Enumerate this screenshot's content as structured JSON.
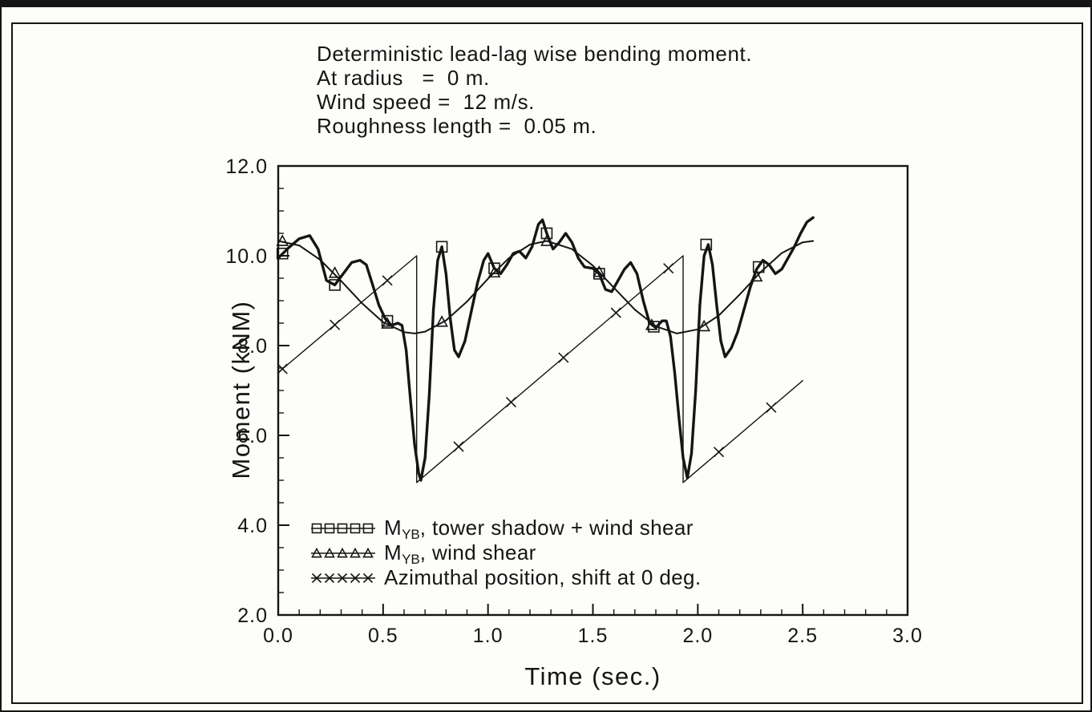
{
  "colors": {
    "ink": "#151515",
    "paper": "#fdfdfa"
  },
  "chart_data": {
    "type": "line",
    "title_lines": [
      "Deterministic lead-lag wise bending moment.",
      "At radius   =  0 m.",
      "Wind speed =  12 m/s.",
      "Roughness length =  0.05 m."
    ],
    "xlabel": "Time  (sec.)",
    "ylabel": "Moment  (kNM)",
    "xlim": [
      0.0,
      3.0
    ],
    "ylim": [
      2.0,
      12.0
    ],
    "xticks": [
      0.0,
      0.5,
      1.0,
      1.5,
      2.0,
      2.5,
      3.0
    ],
    "xtick_labels": [
      "0.0",
      "0.5",
      "1.0",
      "1.5",
      "2.0",
      "2.5",
      "3.0"
    ],
    "yticks": [
      2.0,
      4.0,
      6.0,
      8.0,
      10.0,
      12.0
    ],
    "ytick_labels": [
      "2.0",
      "4.0",
      "6.0",
      "8.0",
      "10.0",
      "12.0"
    ],
    "x_minor_step": 0.1,
    "y_minor_step": 0.5,
    "grid": false,
    "legend_position": "lower-left-inside",
    "series": [
      {
        "name": "MYB tower shadow + wind shear",
        "marker": "square",
        "line_width": 3.4,
        "legend": {
          "main": "M",
          "sub": "YB",
          "rest": ", tower shadow + wind shear"
        },
        "points": [
          [
            0.0,
            9.95
          ],
          [
            0.05,
            10.18
          ],
          [
            0.1,
            10.38
          ],
          [
            0.15,
            10.45
          ],
          [
            0.19,
            10.15
          ],
          [
            0.23,
            9.45
          ],
          [
            0.27,
            9.35
          ],
          [
            0.31,
            9.6
          ],
          [
            0.35,
            9.85
          ],
          [
            0.39,
            9.9
          ],
          [
            0.42,
            9.8
          ],
          [
            0.45,
            9.35
          ],
          [
            0.48,
            8.9
          ],
          [
            0.51,
            8.6
          ],
          [
            0.54,
            8.45
          ],
          [
            0.57,
            8.5
          ],
          [
            0.59,
            8.45
          ],
          [
            0.61,
            7.9
          ],
          [
            0.63,
            6.8
          ],
          [
            0.65,
            5.8
          ],
          [
            0.67,
            5.15
          ],
          [
            0.68,
            5.0
          ],
          [
            0.7,
            5.5
          ],
          [
            0.72,
            6.9
          ],
          [
            0.74,
            8.8
          ],
          [
            0.76,
            9.9
          ],
          [
            0.78,
            10.2
          ],
          [
            0.8,
            9.6
          ],
          [
            0.82,
            8.6
          ],
          [
            0.84,
            7.9
          ],
          [
            0.86,
            7.75
          ],
          [
            0.89,
            8.1
          ],
          [
            0.92,
            8.75
          ],
          [
            0.95,
            9.4
          ],
          [
            0.98,
            9.9
          ],
          [
            1.0,
            10.05
          ],
          [
            1.03,
            9.72
          ],
          [
            1.06,
            9.6
          ],
          [
            1.09,
            9.8
          ],
          [
            1.12,
            10.05
          ],
          [
            1.15,
            10.1
          ],
          [
            1.18,
            9.95
          ],
          [
            1.21,
            10.2
          ],
          [
            1.24,
            10.7
          ],
          [
            1.26,
            10.8
          ],
          [
            1.28,
            10.5
          ],
          [
            1.31,
            10.15
          ],
          [
            1.34,
            10.3
          ],
          [
            1.37,
            10.5
          ],
          [
            1.4,
            10.3
          ],
          [
            1.43,
            9.95
          ],
          [
            1.46,
            9.75
          ],
          [
            1.5,
            9.72
          ],
          [
            1.53,
            9.6
          ],
          [
            1.56,
            9.25
          ],
          [
            1.59,
            9.2
          ],
          [
            1.62,
            9.45
          ],
          [
            1.65,
            9.7
          ],
          [
            1.68,
            9.85
          ],
          [
            1.71,
            9.6
          ],
          [
            1.74,
            9.0
          ],
          [
            1.77,
            8.5
          ],
          [
            1.8,
            8.4
          ],
          [
            1.83,
            8.55
          ],
          [
            1.85,
            8.55
          ],
          [
            1.87,
            8.2
          ],
          [
            1.89,
            7.4
          ],
          [
            1.91,
            6.4
          ],
          [
            1.93,
            5.5
          ],
          [
            1.95,
            5.05
          ],
          [
            1.97,
            5.6
          ],
          [
            1.99,
            7.0
          ],
          [
            2.01,
            8.9
          ],
          [
            2.03,
            10.0
          ],
          [
            2.05,
            10.25
          ],
          [
            2.07,
            9.8
          ],
          [
            2.09,
            8.9
          ],
          [
            2.11,
            8.1
          ],
          [
            2.13,
            7.75
          ],
          [
            2.16,
            7.95
          ],
          [
            2.19,
            8.3
          ],
          [
            2.22,
            8.8
          ],
          [
            2.25,
            9.3
          ],
          [
            2.28,
            9.7
          ],
          [
            2.31,
            9.9
          ],
          [
            2.34,
            9.8
          ],
          [
            2.37,
            9.6
          ],
          [
            2.4,
            9.7
          ],
          [
            2.43,
            9.95
          ],
          [
            2.46,
            10.2
          ],
          [
            2.49,
            10.5
          ],
          [
            2.52,
            10.75
          ],
          [
            2.55,
            10.85
          ]
        ],
        "marker_points": [
          [
            0.02,
            10.05
          ],
          [
            0.27,
            9.35
          ],
          [
            0.52,
            8.55
          ],
          [
            0.78,
            10.2
          ],
          [
            1.03,
            9.72
          ],
          [
            1.28,
            10.5
          ],
          [
            1.53,
            9.6
          ],
          [
            1.79,
            8.42
          ],
          [
            2.04,
            10.25
          ],
          [
            2.29,
            9.75
          ]
        ]
      },
      {
        "name": "MYB wind shear",
        "marker": "triangle",
        "line_width": 2.0,
        "legend": {
          "main": "M",
          "sub": "YB",
          "rest": ", wind shear"
        },
        "points": [
          [
            0.0,
            10.33
          ],
          [
            0.1,
            10.23
          ],
          [
            0.2,
            9.91
          ],
          [
            0.3,
            9.44
          ],
          [
            0.4,
            8.94
          ],
          [
            0.5,
            8.52
          ],
          [
            0.6,
            8.3
          ],
          [
            0.65,
            8.27
          ],
          [
            0.7,
            8.31
          ],
          [
            0.8,
            8.56
          ],
          [
            0.9,
            8.98
          ],
          [
            1.0,
            9.49
          ],
          [
            1.1,
            9.95
          ],
          [
            1.2,
            10.25
          ],
          [
            1.28,
            10.33
          ],
          [
            1.4,
            10.15
          ],
          [
            1.5,
            9.78
          ],
          [
            1.6,
            9.29
          ],
          [
            1.7,
            8.8
          ],
          [
            1.8,
            8.43
          ],
          [
            1.9,
            8.27
          ],
          [
            2.0,
            8.36
          ],
          [
            2.1,
            8.67
          ],
          [
            2.2,
            9.14
          ],
          [
            2.3,
            9.64
          ],
          [
            2.4,
            10.06
          ],
          [
            2.5,
            10.3
          ],
          [
            2.55,
            10.33
          ]
        ],
        "marker_points": [
          [
            0.02,
            10.33
          ],
          [
            0.27,
            9.62
          ],
          [
            0.52,
            8.49
          ],
          [
            0.78,
            8.53
          ],
          [
            1.03,
            9.63
          ],
          [
            1.28,
            10.33
          ],
          [
            1.53,
            9.64
          ],
          [
            1.78,
            8.46
          ],
          [
            2.03,
            8.43
          ],
          [
            2.28,
            9.54
          ]
        ]
      },
      {
        "name": "Azimuthal position, shift at 0 deg.",
        "marker": "x",
        "line_width": 1.4,
        "legend": {
          "main": "Azimuthal position, shift at 0 deg.",
          "sub": "",
          "rest": ""
        },
        "points": [
          [
            0.0,
            7.4
          ],
          [
            0.66,
            10.0
          ],
          [
            0.66,
            4.95
          ],
          [
            1.93,
            10.0
          ],
          [
            1.93,
            4.95
          ],
          [
            2.5,
            7.22
          ]
        ],
        "marker_points": [
          [
            0.02,
            7.48
          ],
          [
            0.27,
            8.46
          ],
          [
            0.52,
            9.45
          ],
          [
            0.86,
            5.75
          ],
          [
            1.11,
            6.74
          ],
          [
            1.36,
            7.73
          ],
          [
            1.61,
            8.73
          ],
          [
            1.86,
            9.72
          ],
          [
            2.1,
            5.63
          ],
          [
            2.35,
            6.62
          ]
        ]
      }
    ]
  }
}
